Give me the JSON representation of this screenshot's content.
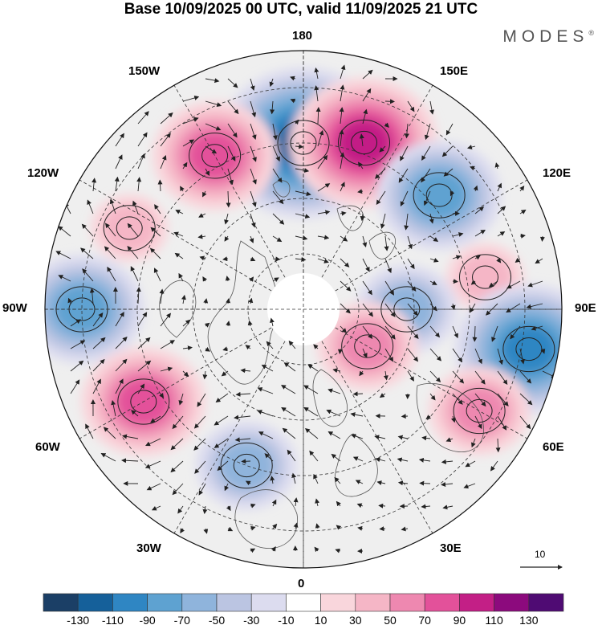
{
  "title": "Base 10/09/2025 00 UTC, valid 11/09/2025 21 UTC",
  "brand": "MODES",
  "brand_mark": "®",
  "longitude_labels": {
    "top": "180",
    "bottom": "0",
    "left": "90W",
    "right": "90E",
    "upper_left_1": "150W",
    "upper_left_2": "120W",
    "lower_left_1": "60W",
    "lower_left_2": "30W",
    "upper_right_1": "150E",
    "upper_right_2": "120E",
    "lower_right_1": "60E",
    "lower_right_2": "30E"
  },
  "vector_scale": {
    "value": "10"
  },
  "colorbar": {
    "ticks": [
      "-130",
      "-110",
      "-90",
      "-70",
      "-50",
      "-30",
      "-10",
      "10",
      "30",
      "50",
      "70",
      "90",
      "110",
      "130"
    ],
    "colors": [
      "#1b3f66",
      "#15609a",
      "#2f86c3",
      "#5ea2d1",
      "#8fb4dc",
      "#bbc5e2",
      "#dcdcef",
      "#ffffff",
      "#f9d6dc",
      "#f5b6c6",
      "#ee88b0",
      "#e3519a",
      "#c31f86",
      "#8c0a7d",
      "#4f0b73"
    ]
  },
  "chart_data": {
    "type": "heatmap",
    "title": "Base 10/09/2025 00 UTC, valid 11/09/2025 21 UTC",
    "projection": "north polar stereographic",
    "field": "anomaly (shaded) with wind vectors",
    "colorbar_range": [
      -130,
      130
    ],
    "colorbar_step": 20,
    "reference_vector": 10,
    "anomaly_centers": [
      {
        "lon": 180,
        "lat": 45,
        "value": -110
      },
      {
        "lon": 160,
        "lat": 42,
        "value": 90
      },
      {
        "lon": -150,
        "lat": 42,
        "value": 70
      },
      {
        "lon": 130,
        "lat": 42,
        "value": -70
      },
      {
        "lon": -115,
        "lat": 38,
        "value": 30
      },
      {
        "lon": 100,
        "lat": 40,
        "value": 30
      },
      {
        "lon": 90,
        "lat": 62,
        "value": -50
      },
      {
        "lon": -90,
        "lat": 30,
        "value": -70
      },
      {
        "lon": 80,
        "lat": 28,
        "value": -90
      },
      {
        "lon": -60,
        "lat": 40,
        "value": 70
      },
      {
        "lon": 60,
        "lat": 35,
        "value": 50
      },
      {
        "lon": -20,
        "lat": 45,
        "value": -50
      },
      {
        "lon": 60,
        "lat": 70,
        "value": 50
      }
    ]
  }
}
